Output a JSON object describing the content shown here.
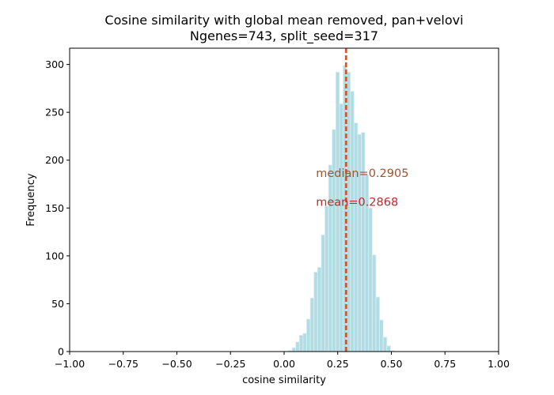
{
  "chart_data": {
    "type": "histogram",
    "title": "Cosine similarity with global mean removed, pan+velovi",
    "subtitle": "Ngenes=743, split_seed=317",
    "xlabel": "cosine similarity",
    "ylabel": "Frequency",
    "xlim": [
      -1.0,
      1.0
    ],
    "ylim": [
      0,
      317
    ],
    "xticks": [
      -1.0,
      -0.75,
      -0.5,
      -0.25,
      0.0,
      0.25,
      0.5,
      0.75,
      1.0
    ],
    "xtick_labels": [
      "−1.00",
      "−0.75",
      "−0.50",
      "−0.25",
      "0.00",
      "0.25",
      "0.50",
      "0.75",
      "1.00"
    ],
    "yticks": [
      0,
      50,
      100,
      150,
      200,
      250,
      300
    ],
    "ytick_labels": [
      "0",
      "50",
      "100",
      "150",
      "200",
      "250",
      "300"
    ],
    "grid": false,
    "bins": {
      "bin_edges": [
        0.02,
        0.037,
        0.054,
        0.071,
        0.088,
        0.105,
        0.122,
        0.139,
        0.156,
        0.173,
        0.19,
        0.207,
        0.224,
        0.241,
        0.258,
        0.275,
        0.292,
        0.309,
        0.326,
        0.343,
        0.36,
        0.377,
        0.394,
        0.411,
        0.428,
        0.445,
        0.462,
        0.479,
        0.496,
        0.513
      ],
      "counts": [
        1,
        4,
        10,
        17,
        19,
        34,
        56,
        83,
        88,
        122,
        152,
        195,
        232,
        292,
        259,
        299,
        292,
        272,
        239,
        227,
        229,
        185,
        150,
        101,
        57,
        33,
        15,
        6,
        1
      ]
    },
    "bar_color": "#b0dde4",
    "bar_edge_color": "#e0eef2",
    "reference_lines": [
      {
        "name": "median",
        "x": 0.2905,
        "color": "#a0522d",
        "style": "dashed"
      },
      {
        "name": "mean",
        "x": 0.2868,
        "color": "#e4572e",
        "style": "dashed"
      }
    ],
    "annotations": [
      {
        "text": "median=0.2905",
        "x": 0.1484,
        "y": 182.5,
        "color": "#a0522d"
      },
      {
        "text": "mean=0.2868",
        "x": 0.1484,
        "y": 152.5,
        "color": "#c0282d"
      }
    ]
  }
}
